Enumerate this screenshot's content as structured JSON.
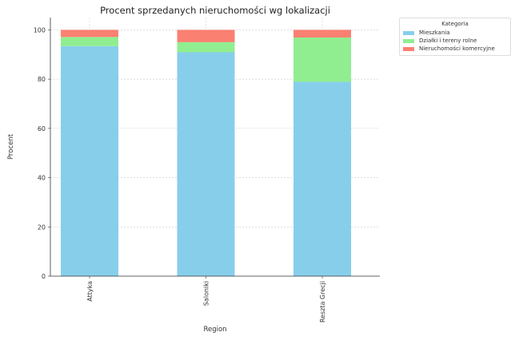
{
  "chart_data": {
    "type": "bar",
    "stacked": true,
    "title": "Procent sprzedanych nieruchomości wg lokalizacji",
    "xlabel": "Region",
    "ylabel": "Procent",
    "categories": [
      "Attyka",
      "Saloniki",
      "Reszta Grecji"
    ],
    "ylim": [
      0,
      105
    ],
    "yticks": [
      0,
      20,
      40,
      60,
      80,
      100
    ],
    "grid": true,
    "legend": {
      "title": "Kategoria",
      "placement": "outside-top-right"
    },
    "series": [
      {
        "name": "Mieszkania",
        "color": "#87ceeb",
        "values": [
          93.4,
          90.9,
          78.9
        ]
      },
      {
        "name": "Działki i tereny rolne",
        "color": "#90ee90",
        "values": [
          3.7,
          4.1,
          18.0
        ]
      },
      {
        "name": "Nieruchomości komercyjne",
        "color": "#fa8072",
        "values": [
          2.9,
          5.0,
          3.1
        ]
      }
    ]
  }
}
